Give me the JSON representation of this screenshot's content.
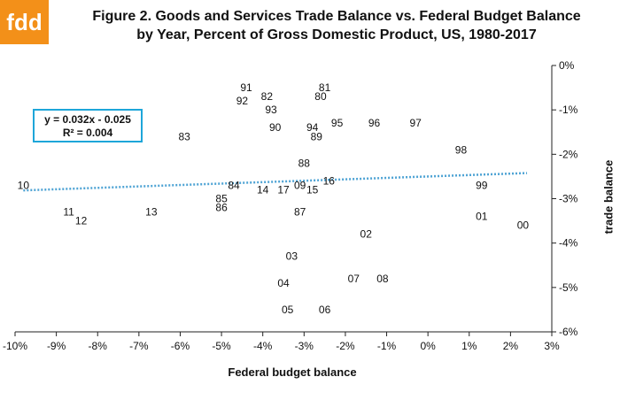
{
  "brand": {
    "logo_text": "fdd",
    "logo_color": "#f39019"
  },
  "chart_data": {
    "type": "scatter",
    "title": "Figure 2. Goods and Services Trade Balance vs. Federal Budget Balance",
    "subtitle": "by Year, Percent of Gross Domestic Product, US, 1980-2017",
    "xlabel": "Federal budget balance",
    "ylabel": "trade balance",
    "xlim": [
      -10,
      3
    ],
    "ylim": [
      -6,
      0
    ],
    "x_ticks": [
      "-10%",
      "-9%",
      "-8%",
      "-7%",
      "-6%",
      "-5%",
      "-4%",
      "-3%",
      "-2%",
      "-1%",
      "0%",
      "1%",
      "2%",
      "3%"
    ],
    "y_ticks": [
      "0%",
      "-1%",
      "-2%",
      "-3%",
      "-4%",
      "-5%",
      "-6%"
    ],
    "points": [
      {
        "label": "80",
        "x": -2.6,
        "y": -0.7
      },
      {
        "label": "81",
        "x": -2.5,
        "y": -0.5
      },
      {
        "label": "82",
        "x": -3.9,
        "y": -0.7
      },
      {
        "label": "83",
        "x": -5.9,
        "y": -1.6
      },
      {
        "label": "84",
        "x": -4.7,
        "y": -2.7
      },
      {
        "label": "85",
        "x": -5.0,
        "y": -3.0
      },
      {
        "label": "86",
        "x": -5.0,
        "y": -3.2
      },
      {
        "label": "87",
        "x": -3.1,
        "y": -3.3
      },
      {
        "label": "88",
        "x": -3.0,
        "y": -2.2
      },
      {
        "label": "89",
        "x": -2.7,
        "y": -1.6
      },
      {
        "label": "90",
        "x": -3.7,
        "y": -1.4
      },
      {
        "label": "91",
        "x": -4.4,
        "y": -0.5
      },
      {
        "label": "92",
        "x": -4.5,
        "y": -0.8
      },
      {
        "label": "93",
        "x": -3.8,
        "y": -1.0
      },
      {
        "label": "94",
        "x": -2.8,
        "y": -1.4
      },
      {
        "label": "95",
        "x": -2.2,
        "y": -1.3
      },
      {
        "label": "96",
        "x": -1.3,
        "y": -1.3
      },
      {
        "label": "97",
        "x": -0.3,
        "y": -1.3
      },
      {
        "label": "98",
        "x": 0.8,
        "y": -1.9
      },
      {
        "label": "99",
        "x": 1.3,
        "y": -2.7
      },
      {
        "label": "00",
        "x": 2.3,
        "y": -3.6
      },
      {
        "label": "01",
        "x": 1.3,
        "y": -3.4
      },
      {
        "label": "02",
        "x": -1.5,
        "y": -3.8
      },
      {
        "label": "03",
        "x": -3.3,
        "y": -4.3
      },
      {
        "label": "04",
        "x": -3.5,
        "y": -4.9
      },
      {
        "label": "05",
        "x": -3.4,
        "y": -5.5
      },
      {
        "label": "06",
        "x": -2.5,
        "y": -5.5
      },
      {
        "label": "07",
        "x": -1.8,
        "y": -4.8
      },
      {
        "label": "08",
        "x": -1.1,
        "y": -4.8
      },
      {
        "label": "09",
        "x": -3.1,
        "y": -2.7
      },
      {
        "label": "10",
        "x": -9.8,
        "y": -2.7
      },
      {
        "label": "11",
        "x": -8.7,
        "y": -3.3
      },
      {
        "label": "12",
        "x": -8.4,
        "y": -3.5
      },
      {
        "label": "13",
        "x": -6.7,
        "y": -3.3
      },
      {
        "label": "14",
        "x": -4.0,
        "y": -2.8
      },
      {
        "label": "15",
        "x": -2.8,
        "y": -2.8
      },
      {
        "label": "16",
        "x": -2.4,
        "y": -2.6
      },
      {
        "label": "17",
        "x": -3.5,
        "y": -2.8
      }
    ],
    "trendline": {
      "equation": "y = 0.032x - 0.025",
      "r_squared": "R² = 0.004",
      "slope": 0.032,
      "intercept": -0.025,
      "x_range": [
        -9.8,
        2.4
      ],
      "color": "#4ea3d4"
    }
  }
}
